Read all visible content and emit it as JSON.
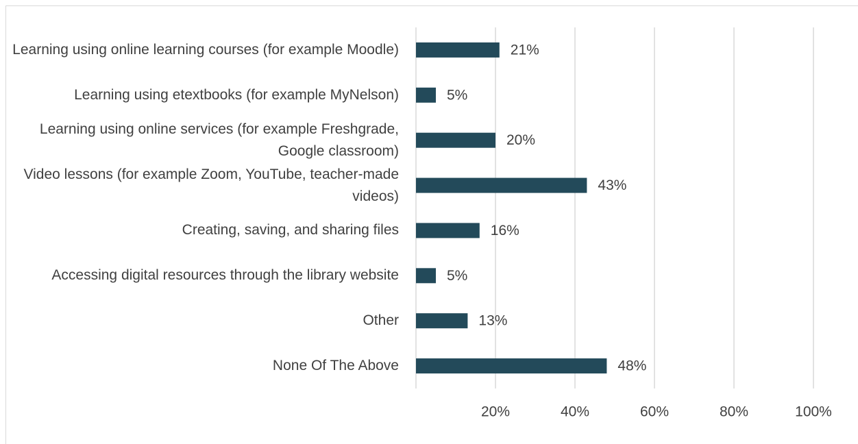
{
  "chart_data": {
    "type": "bar",
    "orientation": "horizontal",
    "categories": [
      "Learning using online learning courses (for example Moodle)",
      "Learning using etextbooks (for example MyNelson)",
      "Learning using online services (for example Freshgrade, Google classroom)",
      "Video lessons (for example Zoom, YouTube, teacher-made videos)",
      "Creating, saving, and sharing files",
      "Accessing digital resources through the library website",
      "Other",
      "None Of The Above"
    ],
    "values": [
      21,
      5,
      20,
      43,
      16,
      5,
      13,
      48
    ],
    "value_labels": [
      "21%",
      "5%",
      "20%",
      "43%",
      "16%",
      "5%",
      "13%",
      "48%"
    ],
    "color": "#234a5a",
    "xlim": [
      0,
      100
    ],
    "xticks": [
      {
        "value": 20,
        "label": "20%"
      },
      {
        "value": 40,
        "label": "40%"
      },
      {
        "value": 60,
        "label": "60%"
      },
      {
        "value": 80,
        "label": "80%"
      },
      {
        "value": 100,
        "label": "100%"
      }
    ],
    "grid": true
  }
}
